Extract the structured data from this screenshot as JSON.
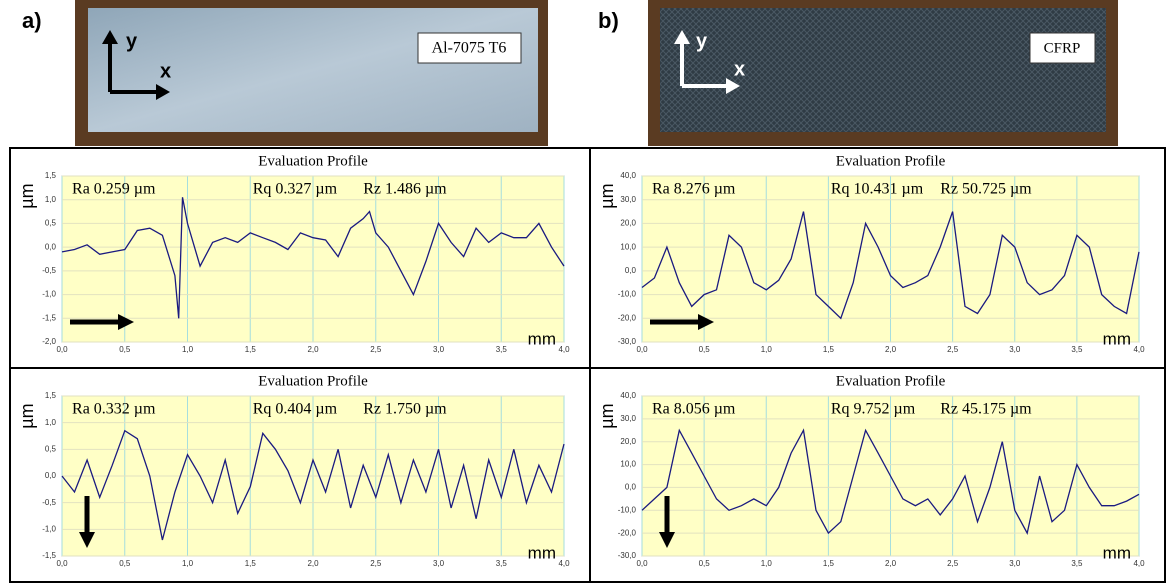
{
  "panels": [
    {
      "label": "a)",
      "sample": "Al-7075 T6"
    },
    {
      "label": "b)",
      "sample": "CFRP"
    }
  ],
  "photo_axes": {
    "x": "x",
    "y": "y"
  },
  "chart_data": [
    {
      "type": "line",
      "title": "Evaluation Profile",
      "annotations": [
        "Ra 0.259 µm",
        "Rq 0.327 µm",
        "Rz 1.486 µm"
      ],
      "x_label": "mm",
      "y_label": "µm",
      "color": "#1a1a80",
      "x": [
        0,
        0.1,
        0.2,
        0.3,
        0.4,
        0.5,
        0.6,
        0.7,
        0.8,
        0.9,
        0.93,
        0.96,
        1.0,
        1.1,
        1.2,
        1.3,
        1.4,
        1.5,
        1.6,
        1.7,
        1.8,
        1.9,
        2.0,
        2.1,
        2.2,
        2.3,
        2.4,
        2.45,
        2.5,
        2.6,
        2.7,
        2.8,
        2.9,
        3.0,
        3.1,
        3.2,
        3.3,
        3.4,
        3.5,
        3.6,
        3.7,
        3.8,
        3.9,
        4.0
      ],
      "values": [
        -0.1,
        -0.05,
        0.05,
        -0.15,
        -0.1,
        -0.05,
        0.35,
        0.4,
        0.25,
        -0.6,
        -1.5,
        1.05,
        0.5,
        -0.4,
        0.1,
        0.2,
        0.1,
        0.3,
        0.2,
        0.1,
        -0.05,
        0.3,
        0.2,
        0.15,
        -0.2,
        0.4,
        0.6,
        0.75,
        0.3,
        0.0,
        -0.5,
        -1.0,
        -0.3,
        0.5,
        0.1,
        -0.2,
        0.4,
        0.1,
        0.3,
        0.2,
        0.2,
        0.5,
        0.0,
        -0.4
      ],
      "xlim": [
        0,
        4
      ],
      "xticks": [
        {
          "value": 0,
          "label": "0,0"
        },
        {
          "value": 0.5,
          "label": "0,5"
        },
        {
          "value": 1,
          "label": "1,0"
        },
        {
          "value": 1.5,
          "label": "1,5"
        },
        {
          "value": 2,
          "label": "2,0"
        },
        {
          "value": 2.5,
          "label": "2,5"
        },
        {
          "value": 3,
          "label": "3,0"
        },
        {
          "value": 3.5,
          "label": "3,5"
        },
        {
          "value": 4,
          "label": "4,0"
        }
      ],
      "ylim": [
        -2,
        1.5
      ],
      "yticks": [
        {
          "value": 1.5,
          "label": "1,5"
        },
        {
          "value": 1,
          "label": "1,0"
        },
        {
          "value": 0.5,
          "label": "0,5"
        },
        {
          "value": 0,
          "label": "0,0"
        },
        {
          "value": -0.5,
          "label": "-0,5"
        },
        {
          "value": -1,
          "label": "-1,0"
        },
        {
          "value": -1.5,
          "label": "-1,5"
        },
        {
          "value": -2,
          "label": "-2,0"
        }
      ],
      "grid": true
    },
    {
      "type": "line",
      "title": "Evaluation Profile",
      "annotations": [
        "Ra 8.276 µm",
        "Rq 10.431 µm",
        "Rz 50.725 µm"
      ],
      "x_label": "mm",
      "y_label": "µm",
      "color": "#1a1a80",
      "x": [
        0,
        0.1,
        0.2,
        0.3,
        0.4,
        0.5,
        0.6,
        0.7,
        0.8,
        0.9,
        1.0,
        1.1,
        1.2,
        1.3,
        1.4,
        1.5,
        1.6,
        1.7,
        1.8,
        1.9,
        2.0,
        2.1,
        2.2,
        2.3,
        2.4,
        2.5,
        2.6,
        2.7,
        2.8,
        2.9,
        3.0,
        3.1,
        3.2,
        3.3,
        3.4,
        3.5,
        3.6,
        3.7,
        3.8,
        3.9,
        4.0
      ],
      "values": [
        -7,
        -3,
        10,
        -5,
        -15,
        -10,
        -8,
        15,
        10,
        -5,
        -8,
        -4,
        5,
        25,
        -10,
        -15,
        -20,
        -5,
        20,
        10,
        -2,
        -7,
        -5,
        -2,
        10,
        25,
        -15,
        -18,
        -10,
        15,
        10,
        -5,
        -10,
        -8,
        -2,
        15,
        10,
        -10,
        -15,
        -18,
        8
      ],
      "xlim": [
        0,
        4
      ],
      "xticks": [
        {
          "value": 0,
          "label": "0,0"
        },
        {
          "value": 0.5,
          "label": "0,5"
        },
        {
          "value": 1,
          "label": "1,0"
        },
        {
          "value": 1.5,
          "label": "1,5"
        },
        {
          "value": 2,
          "label": "2,0"
        },
        {
          "value": 2.5,
          "label": "2,5"
        },
        {
          "value": 3,
          "label": "3,0"
        },
        {
          "value": 3.5,
          "label": "3,5"
        },
        {
          "value": 4,
          "label": "4,0"
        }
      ],
      "ylim": [
        -30,
        40
      ],
      "yticks": [
        {
          "value": 40,
          "label": "40,0"
        },
        {
          "value": 30,
          "label": "30,0"
        },
        {
          "value": 20,
          "label": "20,0"
        },
        {
          "value": 10,
          "label": "10,0"
        },
        {
          "value": 0,
          "label": "0,0"
        },
        {
          "value": -10,
          "label": "-10,0"
        },
        {
          "value": -20,
          "label": "-20,0"
        },
        {
          "value": -30,
          "label": "-30,0"
        }
      ],
      "grid": true
    },
    {
      "type": "line",
      "title": "Evaluation Profile",
      "annotations": [
        "Ra 0.332 µm",
        "Rq 0.404 µm",
        "Rz 1.750 µm"
      ],
      "x_label": "mm",
      "y_label": "µm",
      "color": "#1a1a80",
      "x": [
        0,
        0.1,
        0.2,
        0.3,
        0.4,
        0.5,
        0.6,
        0.7,
        0.8,
        0.9,
        1.0,
        1.1,
        1.2,
        1.3,
        1.4,
        1.5,
        1.6,
        1.7,
        1.8,
        1.9,
        2.0,
        2.1,
        2.2,
        2.3,
        2.4,
        2.5,
        2.6,
        2.7,
        2.8,
        2.9,
        3.0,
        3.1,
        3.2,
        3.3,
        3.4,
        3.5,
        3.6,
        3.7,
        3.8,
        3.9,
        4.0
      ],
      "values": [
        0.0,
        -0.3,
        0.3,
        -0.4,
        0.2,
        0.85,
        0.7,
        0.0,
        -1.2,
        -0.3,
        0.4,
        0.0,
        -0.5,
        0.3,
        -0.7,
        -0.2,
        0.8,
        0.5,
        0.1,
        -0.5,
        0.3,
        -0.3,
        0.5,
        -0.6,
        0.2,
        -0.4,
        0.4,
        -0.5,
        0.3,
        -0.3,
        0.5,
        -0.6,
        0.2,
        -0.8,
        0.3,
        -0.4,
        0.5,
        -0.5,
        0.2,
        -0.3,
        0.6
      ],
      "xlim": [
        0,
        4
      ],
      "xticks": [
        {
          "value": 0,
          "label": "0,0"
        },
        {
          "value": 0.5,
          "label": "0,5"
        },
        {
          "value": 1,
          "label": "1,0"
        },
        {
          "value": 1.5,
          "label": "1,5"
        },
        {
          "value": 2,
          "label": "2,0"
        },
        {
          "value": 2.5,
          "label": "2,5"
        },
        {
          "value": 3,
          "label": "3,0"
        },
        {
          "value": 3.5,
          "label": "3,5"
        },
        {
          "value": 4,
          "label": "4,0"
        }
      ],
      "ylim": [
        -1.5,
        1.5
      ],
      "yticks": [
        {
          "value": 1.5,
          "label": "1,5"
        },
        {
          "value": 1,
          "label": "1,0"
        },
        {
          "value": 0.5,
          "label": "0,5"
        },
        {
          "value": 0,
          "label": "0,0"
        },
        {
          "value": -0.5,
          "label": "-0,5"
        },
        {
          "value": -1,
          "label": "-1,0"
        },
        {
          "value": -1.5,
          "label": "-1,5"
        }
      ],
      "grid": true
    },
    {
      "type": "line",
      "title": "Evaluation Profile",
      "annotations": [
        "Ra 8.056 µm",
        "Rq 9.752 µm",
        "Rz 45.175 µm"
      ],
      "x_label": "mm",
      "y_label": "µm",
      "color": "#1a1a80",
      "x": [
        0,
        0.1,
        0.2,
        0.3,
        0.4,
        0.5,
        0.6,
        0.7,
        0.8,
        0.9,
        1.0,
        1.1,
        1.2,
        1.3,
        1.4,
        1.5,
        1.6,
        1.7,
        1.8,
        1.9,
        2.0,
        2.1,
        2.2,
        2.3,
        2.4,
        2.5,
        2.6,
        2.7,
        2.8,
        2.9,
        3.0,
        3.1,
        3.2,
        3.3,
        3.4,
        3.5,
        3.6,
        3.7,
        3.8,
        3.9,
        4.0
      ],
      "values": [
        -10,
        -5,
        0,
        25,
        15,
        5,
        -5,
        -10,
        -8,
        -5,
        -8,
        0,
        15,
        25,
        -10,
        -20,
        -15,
        5,
        25,
        15,
        5,
        -5,
        -8,
        -5,
        -12,
        -5,
        5,
        -15,
        0,
        20,
        -10,
        -20,
        5,
        -15,
        -10,
        10,
        0,
        -8,
        -8,
        -6,
        -3
      ],
      "xlim": [
        0,
        4
      ],
      "xticks": [
        {
          "value": 0,
          "label": "0,0"
        },
        {
          "value": 0.5,
          "label": "0,5"
        },
        {
          "value": 1,
          "label": "1,0"
        },
        {
          "value": 1.5,
          "label": "1,5"
        },
        {
          "value": 2,
          "label": "2,0"
        },
        {
          "value": 2.5,
          "label": "2,5"
        },
        {
          "value": 3,
          "label": "3,0"
        },
        {
          "value": 3.5,
          "label": "3,5"
        },
        {
          "value": 4,
          "label": "4,0"
        }
      ],
      "ylim": [
        -30,
        40
      ],
      "yticks": [
        {
          "value": 40,
          "label": "40,0"
        },
        {
          "value": 30,
          "label": "30,0"
        },
        {
          "value": 20,
          "label": "20,0"
        },
        {
          "value": 10,
          "label": "10,0"
        },
        {
          "value": 0,
          "label": "0,0"
        },
        {
          "value": -10,
          "label": "-10,0"
        },
        {
          "value": -20,
          "label": "-20,0"
        },
        {
          "value": -30,
          "label": "-30,0"
        }
      ],
      "grid": true
    }
  ]
}
